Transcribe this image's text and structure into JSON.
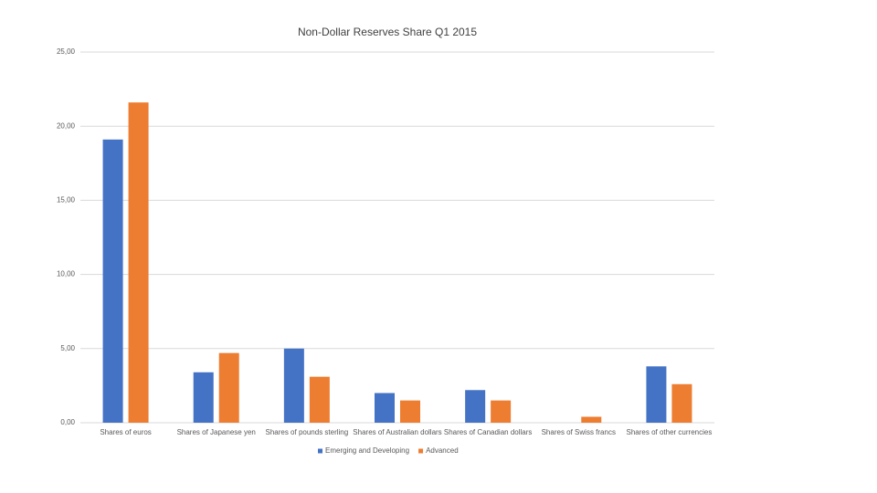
{
  "chart_data": {
    "type": "bar",
    "title": "Non-Dollar Reserves Share Q1 2015",
    "categories": [
      "Shares of euros",
      "Shares of Japanese yen",
      "Shares of pounds sterling",
      "Shares of Australian dollars",
      "Shares of Canadian dollars",
      "Shares of Swiss francs",
      "Shares of other currencies"
    ],
    "series": [
      {
        "name": "Emerging and Developing",
        "color": "#4472c4",
        "values": [
          19.1,
          3.4,
          5.0,
          2.0,
          2.2,
          0,
          3.8
        ]
      },
      {
        "name": "Advanced",
        "color": "#ed7d31",
        "values": [
          21.6,
          4.7,
          3.1,
          1.5,
          1.5,
          0.4,
          2.6
        ]
      }
    ],
    "ylim": [
      0,
      25
    ],
    "yticks": [
      {
        "value": 0,
        "label": "0,00"
      },
      {
        "value": 5,
        "label": "5,00"
      },
      {
        "value": 10,
        "label": "10,00"
      },
      {
        "value": 15,
        "label": "15,00"
      },
      {
        "value": 20,
        "label": "20,00"
      },
      {
        "value": 25,
        "label": "25,00"
      }
    ],
    "grid": true,
    "legend": "bottom"
  }
}
